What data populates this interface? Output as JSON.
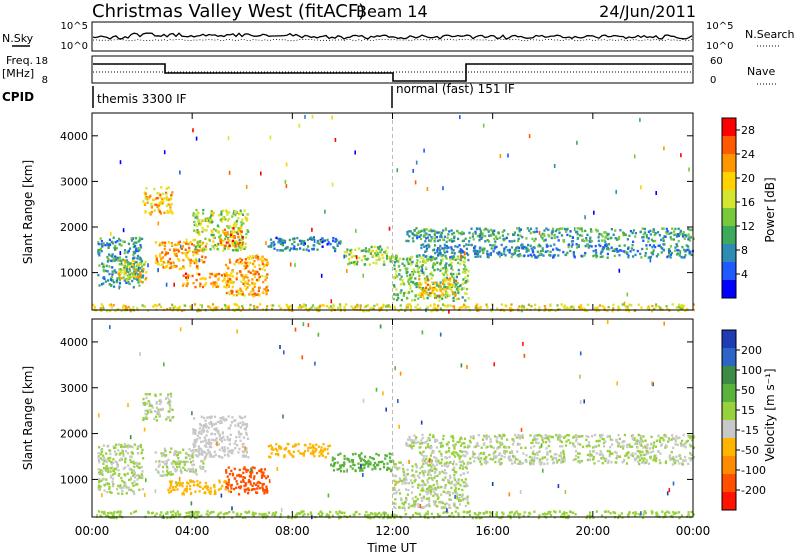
{
  "header": {
    "title": "Christmas Valley West (fitACF)",
    "beam": "Beam 14",
    "date": "24/Jun/2011"
  },
  "aux_labels": {
    "nsky": "N.Sky",
    "nsearch": "N.Search",
    "freq": "Freq.",
    "freq_unit": "[MHz]",
    "nave": "Nave",
    "cpid": "CPID",
    "nsky_ticks": [
      "10^5",
      "10^0"
    ],
    "nsearch_ticks": [
      "10^5",
      "10^0"
    ],
    "freq_ticks": [
      "18",
      "8"
    ],
    "nave_ticks": [
      "60",
      "0"
    ]
  },
  "cpid_segments": [
    {
      "label": "themis 3300 IF",
      "start_hour": 0,
      "end_hour": 12
    },
    {
      "label": "normal (fast) 151 IF",
      "start_hour": 12,
      "end_hour": 24
    }
  ],
  "colors": {
    "power_scale": [
      "#0000ff",
      "#1e5aff",
      "#2d8cb4",
      "#3caa5a",
      "#78c83c",
      "#d2e632",
      "#ffd200",
      "#ff9600",
      "#ff5a00",
      "#ff0000"
    ],
    "velocity_scale": [
      "#1e3cb4",
      "#2d64c8",
      "#3c8c46",
      "#5ab43c",
      "#96d23c",
      "#c8c8c8",
      "#ffb400",
      "#ff8c00",
      "#ff5000",
      "#ff1400"
    ]
  },
  "chart_data": [
    {
      "type": "heatmap",
      "name": "power",
      "xlabel": "",
      "ylabel": "Slant Range [km]",
      "xlim": [
        0,
        24
      ],
      "ylim": [
        180,
        4500
      ],
      "y_ticks": [
        1000,
        2000,
        3000,
        4000
      ],
      "colorbar": {
        "label": "Power [dB]",
        "ticks": [
          4,
          8,
          12,
          16,
          20,
          24,
          28
        ],
        "range": [
          0,
          30
        ]
      },
      "regions": [
        {
          "t0": 0.2,
          "t1": 2.0,
          "r0": 700,
          "r1": 1800,
          "value": 9
        },
        {
          "t0": 1.0,
          "t1": 2.2,
          "r0": 800,
          "r1": 1300,
          "value": 18
        },
        {
          "t0": 2.0,
          "t1": 3.2,
          "r0": 2300,
          "r1": 2900,
          "value": 20
        },
        {
          "t0": 2.5,
          "t1": 4.5,
          "r0": 1100,
          "r1": 1700,
          "value": 22
        },
        {
          "t0": 3.5,
          "t1": 5.5,
          "r0": 700,
          "r1": 1000,
          "value": 23
        },
        {
          "t0": 4.0,
          "t1": 6.2,
          "r0": 1500,
          "r1": 2400,
          "value": 15
        },
        {
          "t0": 5.0,
          "t1": 6.0,
          "r0": 1600,
          "r1": 2000,
          "value": 24
        },
        {
          "t0": 5.3,
          "t1": 7.0,
          "r0": 500,
          "r1": 1400,
          "value": 22
        },
        {
          "t0": 7.0,
          "t1": 10.0,
          "r0": 1500,
          "r1": 1800,
          "value": 7
        },
        {
          "t0": 10.0,
          "t1": 12.0,
          "r0": 1200,
          "r1": 1600,
          "value": 14
        },
        {
          "t0": 12.0,
          "t1": 15.0,
          "r0": 400,
          "r1": 1400,
          "value": 13
        },
        {
          "t0": 13.0,
          "t1": 14.5,
          "r0": 500,
          "r1": 900,
          "value": 20
        },
        {
          "t0": 12.5,
          "t1": 24.0,
          "r0": 1700,
          "r1": 2000,
          "value": 10
        },
        {
          "t0": 13.0,
          "t1": 24.0,
          "r0": 1350,
          "r1": 1650,
          "value": 8
        },
        {
          "t0": 0.0,
          "t1": 24.0,
          "r0": 180,
          "r1": 330,
          "value": 18
        }
      ]
    },
    {
      "type": "heatmap",
      "name": "velocity",
      "xlabel": "Time UT",
      "ylabel": "Slant Range [km]",
      "xlim": [
        0,
        24
      ],
      "ylim": [
        180,
        4500
      ],
      "x_ticks": [
        "00:00",
        "04:00",
        "08:00",
        "12:00",
        "16:00",
        "20:00",
        "00:00"
      ],
      "y_ticks": [
        1000,
        2000,
        3000,
        4000
      ],
      "colorbar": {
        "label": "Velocity [m s⁻¹]",
        "ticks": [
          200,
          100,
          50,
          15,
          -15,
          -50,
          -100,
          -200
        ],
        "range": [
          -250,
          250
        ]
      },
      "regions": [
        {
          "t0": 0.2,
          "t1": 2.0,
          "r0": 700,
          "r1": 1800,
          "value": 0
        },
        {
          "t0": 2.0,
          "t1": 3.2,
          "r0": 2300,
          "r1": 2900,
          "value": 0
        },
        {
          "t0": 2.5,
          "t1": 4.5,
          "r0": 1100,
          "r1": 1700,
          "value": 0
        },
        {
          "t0": 3.0,
          "t1": 5.5,
          "r0": 700,
          "r1": 1000,
          "value": -60
        },
        {
          "t0": 4.0,
          "t1": 6.2,
          "r0": 1500,
          "r1": 2400,
          "value": -40
        },
        {
          "t0": 5.3,
          "t1": 7.0,
          "r0": 700,
          "r1": 1300,
          "value": -180
        },
        {
          "t0": 7.0,
          "t1": 9.5,
          "r0": 1500,
          "r1": 1800,
          "value": -80
        },
        {
          "t0": 9.5,
          "t1": 12.0,
          "r0": 1200,
          "r1": 1600,
          "value": 60
        },
        {
          "t0": 12.0,
          "t1": 15.0,
          "r0": 400,
          "r1": 1400,
          "value": 0
        },
        {
          "t0": 12.5,
          "t1": 24.0,
          "r0": 1700,
          "r1": 2000,
          "value": 0
        },
        {
          "t0": 13.0,
          "t1": 24.0,
          "r0": 1350,
          "r1": 1650,
          "value": 0
        },
        {
          "t0": 0.0,
          "t1": 24.0,
          "r0": 180,
          "r1": 330,
          "value": 40
        }
      ]
    }
  ]
}
